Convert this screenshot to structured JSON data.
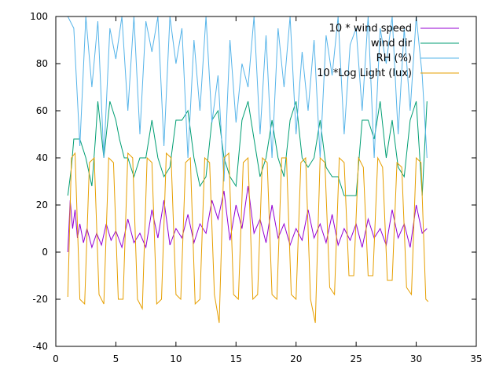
{
  "chart_data": {
    "type": "line",
    "title": "",
    "xlabel": "",
    "ylabel": "",
    "xlim": [
      0,
      35
    ],
    "ylim": [
      -40,
      100
    ],
    "x_ticks": [
      0,
      5,
      10,
      15,
      20,
      25,
      30,
      35
    ],
    "y_ticks": [
      -40,
      -20,
      0,
      20,
      40,
      60,
      80,
      100
    ],
    "grid": false,
    "legend_position": "top-right",
    "series": [
      {
        "name": "10 * wind speed",
        "color": "#9400d3",
        "x": [
          1.0,
          1.2,
          1.4,
          1.6,
          1.8,
          2.0,
          2.3,
          2.6,
          3.0,
          3.4,
          3.8,
          4.2,
          4.6,
          5.0,
          5.5,
          6.0,
          6.5,
          7.0,
          7.5,
          8.0,
          8.5,
          9.0,
          9.5,
          10.0,
          10.5,
          11.0,
          11.5,
          12.0,
          12.5,
          13.0,
          13.5,
          14.0,
          14.5,
          15.0,
          15.5,
          16.0,
          16.5,
          17.0,
          17.5,
          18.0,
          18.5,
          19.0,
          19.5,
          20.0,
          20.5,
          21.0,
          21.5,
          22.0,
          22.5,
          23.0,
          23.5,
          24.0,
          24.5,
          25.0,
          25.5,
          26.0,
          26.5,
          27.0,
          27.5,
          28.0,
          28.5,
          29.0,
          29.5,
          30.0,
          30.5,
          30.9
        ],
        "y": [
          0,
          22,
          10,
          18,
          6,
          12,
          4,
          10,
          2,
          8,
          3,
          12,
          5,
          9,
          2,
          14,
          4,
          8,
          2,
          18,
          6,
          22,
          3,
          10,
          6,
          16,
          4,
          12,
          8,
          22,
          14,
          26,
          5,
          20,
          10,
          28,
          8,
          14,
          4,
          20,
          6,
          12,
          3,
          10,
          5,
          18,
          6,
          12,
          4,
          16,
          3,
          10,
          5,
          12,
          2,
          14,
          6,
          10,
          3,
          18,
          6,
          12,
          2,
          20,
          8,
          10
        ]
      },
      {
        "name": "wind dir",
        "color": "#009e73",
        "x": [
          1.0,
          1.3,
          1.5,
          2.0,
          2.5,
          3.0,
          3.3,
          3.5,
          4.0,
          4.5,
          5.0,
          5.3,
          5.7,
          6.0,
          6.5,
          7.0,
          7.5,
          8.0,
          8.5,
          9.0,
          9.5,
          10.0,
          10.5,
          11.0,
          11.5,
          12.0,
          12.5,
          13.0,
          13.5,
          14.0,
          14.5,
          15.0,
          15.5,
          16.0,
          16.5,
          17.0,
          17.5,
          18.0,
          18.5,
          19.0,
          19.5,
          20.0,
          20.5,
          21.0,
          21.5,
          22.0,
          22.5,
          23.0,
          23.5,
          24.0,
          24.5,
          25.0,
          25.5,
          26.0,
          26.5,
          27.0,
          27.5,
          28.0,
          28.5,
          29.0,
          29.5,
          30.0,
          30.5,
          30.9
        ],
        "y": [
          24,
          36,
          48,
          48,
          40,
          28,
          48,
          64,
          40,
          64,
          56,
          48,
          40,
          40,
          32,
          40,
          40,
          56,
          40,
          32,
          36,
          56,
          56,
          60,
          40,
          28,
          32,
          56,
          60,
          40,
          32,
          28,
          56,
          64,
          48,
          32,
          40,
          56,
          40,
          32,
          56,
          64,
          40,
          36,
          40,
          56,
          36,
          32,
          32,
          24,
          24,
          24,
          56,
          56,
          48,
          64,
          40,
          56,
          36,
          32,
          56,
          64,
          24,
          64
        ]
      },
      {
        "name": "RH (%)",
        "color": "#56b4e9",
        "x": [
          1.0,
          1.5,
          2.0,
          2.5,
          3.0,
          3.5,
          4.0,
          4.5,
          5.0,
          5.5,
          6.0,
          6.5,
          7.0,
          7.5,
          8.0,
          8.5,
          9.0,
          9.5,
          10.0,
          10.5,
          11.0,
          11.5,
          12.0,
          12.5,
          13.0,
          13.5,
          14.0,
          14.5,
          15.0,
          15.5,
          16.0,
          16.5,
          17.0,
          17.5,
          18.0,
          18.5,
          19.0,
          19.5,
          20.0,
          20.5,
          21.0,
          21.5,
          22.0,
          22.5,
          23.0,
          23.5,
          24.0,
          24.5,
          25.0,
          25.5,
          26.0,
          26.5,
          27.0,
          27.5,
          28.0,
          28.5,
          29.0,
          29.5,
          30.0,
          30.5,
          30.9
        ],
        "y": [
          100,
          95,
          45,
          100,
          70,
          98,
          40,
          95,
          82,
          100,
          60,
          100,
          50,
          98,
          85,
          100,
          45,
          100,
          80,
          95,
          40,
          90,
          60,
          100,
          55,
          75,
          30,
          90,
          55,
          80,
          70,
          100,
          50,
          92,
          40,
          95,
          70,
          100,
          50,
          85,
          60,
          90,
          40,
          92,
          75,
          100,
          50,
          88,
          95,
          60,
          100,
          40,
          95,
          80,
          100,
          50,
          95,
          60,
          100,
          75,
          40
        ]
      },
      {
        "name": "10 *Log Light (lux)",
        "color": "#e69f00",
        "x": [
          1.0,
          1.3,
          1.6,
          2.0,
          2.4,
          2.8,
          3.2,
          3.6,
          4.0,
          4.4,
          4.8,
          5.2,
          5.6,
          6.0,
          6.4,
          6.8,
          7.2,
          7.6,
          8.0,
          8.4,
          8.8,
          9.2,
          9.6,
          10.0,
          10.4,
          10.8,
          11.2,
          11.6,
          12.0,
          12.4,
          12.8,
          13.2,
          13.6,
          14.0,
          14.4,
          14.8,
          15.2,
          15.6,
          16.0,
          16.4,
          16.8,
          17.2,
          17.6,
          18.0,
          18.4,
          18.8,
          19.2,
          19.6,
          20.0,
          20.4,
          20.8,
          21.2,
          21.6,
          22.0,
          22.4,
          22.8,
          23.2,
          23.6,
          24.0,
          24.4,
          24.8,
          25.2,
          25.6,
          26.0,
          26.4,
          26.8,
          27.2,
          27.6,
          28.0,
          28.4,
          28.8,
          29.2,
          29.6,
          30.0,
          30.4,
          30.8,
          31.0
        ],
        "y": [
          -19,
          40,
          42,
          -20,
          -22,
          38,
          40,
          -18,
          -22,
          40,
          38,
          -20,
          -20,
          42,
          40,
          -20,
          -24,
          40,
          38,
          -22,
          -20,
          42,
          40,
          -18,
          -20,
          38,
          40,
          -22,
          -20,
          40,
          38,
          -18,
          -30,
          40,
          42,
          -18,
          -20,
          38,
          40,
          -20,
          -18,
          40,
          38,
          -18,
          -20,
          40,
          40,
          -18,
          -20,
          38,
          40,
          -20,
          -30,
          40,
          38,
          -15,
          -18,
          40,
          38,
          -10,
          -10,
          40,
          36,
          -10,
          -10,
          40,
          36,
          -12,
          -12,
          38,
          36,
          -15,
          -18,
          40,
          38,
          -20,
          -21
        ]
      }
    ]
  }
}
